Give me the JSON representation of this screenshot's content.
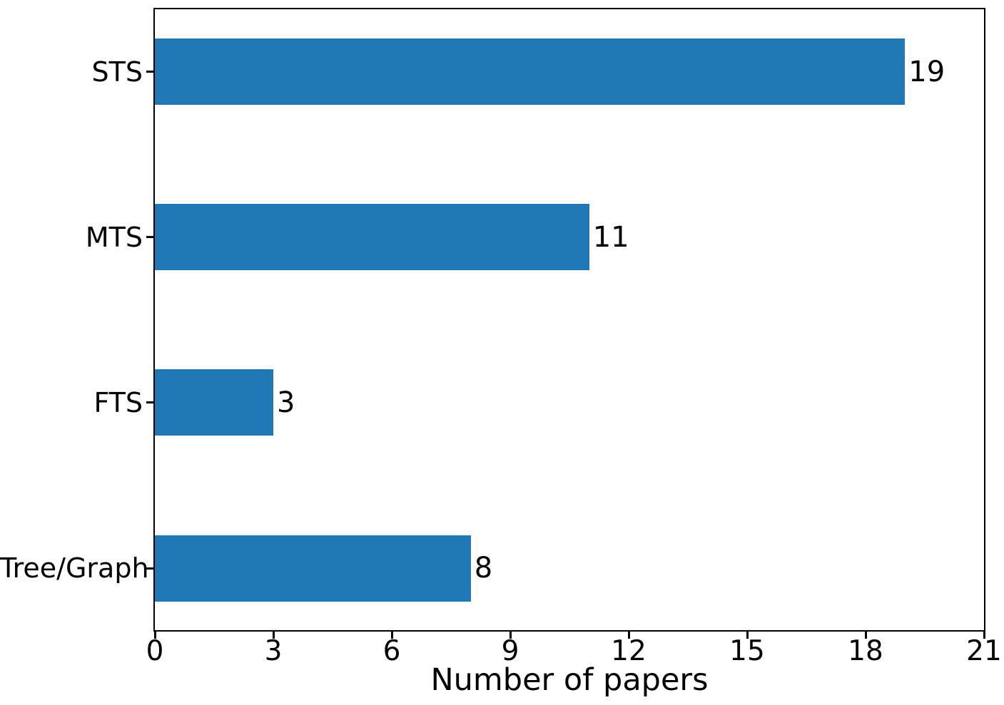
{
  "chart_data": {
    "type": "bar",
    "orientation": "horizontal",
    "title": "",
    "xlabel": "Number of papers",
    "ylabel": "",
    "categories": [
      "STS",
      "MTS",
      "FTS",
      "Tree/Graph"
    ],
    "values": [
      19,
      11,
      3,
      8
    ],
    "data_labels": [
      "19",
      "11",
      "3",
      "8"
    ],
    "xticks": [
      0,
      3,
      6,
      9,
      12,
      15,
      18,
      21
    ],
    "xlim": [
      0,
      21
    ],
    "grid": false,
    "legend": null,
    "bar_color": "#1f77b4",
    "axis_color": "#000000",
    "background_color": "#ffffff"
  }
}
